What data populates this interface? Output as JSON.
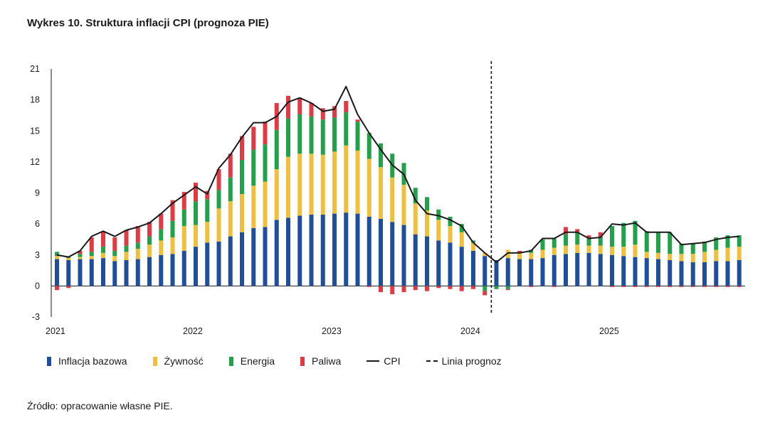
{
  "title": "Wykres 10. Struktura inflacji CPI (prognoza PIE)",
  "source": "Źródło: opracowanie własne PIE.",
  "colors": {
    "core": "#1f4e9c",
    "food": "#f0bf3c",
    "energy": "#23a04a",
    "fuel": "#e03a45",
    "cpi": "#1a1a1a",
    "forecast": "#1a1a1a"
  },
  "legend": {
    "core": "Inflacja bazowa",
    "food": "Żywność",
    "energy": "Energia",
    "fuel": "Paliwa",
    "cpi": "CPI",
    "forecast": "Linia prognoz"
  },
  "chart_data": {
    "type": "bar",
    "stacked": true,
    "title": "Wykres 10. Struktura inflacji CPI (prognoza PIE)",
    "xlabel": "",
    "ylabel": "",
    "ylim": [
      -3,
      21
    ],
    "yticks": [
      -3,
      0,
      3,
      6,
      9,
      12,
      15,
      18,
      21
    ],
    "year_labels": [
      "2021",
      "2022",
      "2023",
      "2024",
      "2025"
    ],
    "year_start_index": [
      0,
      12,
      24,
      36,
      48
    ],
    "forecast_start_index": 38,
    "months": [
      "2021-01",
      "2021-02",
      "2021-03",
      "2021-04",
      "2021-05",
      "2021-06",
      "2021-07",
      "2021-08",
      "2021-09",
      "2021-10",
      "2021-11",
      "2021-12",
      "2022-01",
      "2022-02",
      "2022-03",
      "2022-04",
      "2022-05",
      "2022-06",
      "2022-07",
      "2022-08",
      "2022-09",
      "2022-10",
      "2022-11",
      "2022-12",
      "2023-01",
      "2023-02",
      "2023-03",
      "2023-04",
      "2023-05",
      "2023-06",
      "2023-07",
      "2023-08",
      "2023-09",
      "2023-10",
      "2023-11",
      "2023-12",
      "2024-01",
      "2024-02",
      "2024-03",
      "2024-04",
      "2024-05",
      "2024-06",
      "2024-07",
      "2024-08",
      "2024-09",
      "2024-10",
      "2024-11",
      "2024-12",
      "2025-01",
      "2025-02",
      "2025-03",
      "2025-04",
      "2025-05",
      "2025-06",
      "2025-07",
      "2025-08",
      "2025-09",
      "2025-10",
      "2025-11",
      "2025-12"
    ],
    "series": [
      {
        "name": "Inflacja bazowa",
        "key": "core",
        "values": [
          2.6,
          2.5,
          2.6,
          2.6,
          2.7,
          2.4,
          2.5,
          2.6,
          2.8,
          3.0,
          3.1,
          3.4,
          3.8,
          4.2,
          4.3,
          4.8,
          5.2,
          5.6,
          5.7,
          6.4,
          6.6,
          6.8,
          6.9,
          6.9,
          7.0,
          7.1,
          7.0,
          6.7,
          6.5,
          6.2,
          5.9,
          5.0,
          4.8,
          4.4,
          4.2,
          3.8,
          3.4,
          2.9,
          2.5,
          2.7,
          2.6,
          2.6,
          2.7,
          3.0,
          3.1,
          3.2,
          3.2,
          3.1,
          3.0,
          2.9,
          2.8,
          2.7,
          2.6,
          2.5,
          2.4,
          2.3,
          2.3,
          2.4,
          2.4,
          2.5
        ]
      },
      {
        "name": "Żywność",
        "key": "food",
        "values": [
          0.3,
          0.2,
          0.2,
          0.3,
          0.5,
          0.5,
          0.8,
          1.0,
          1.2,
          1.4,
          1.6,
          2.4,
          2.1,
          2.0,
          3.2,
          3.4,
          3.7,
          4.1,
          4.4,
          4.9,
          5.9,
          6.0,
          5.9,
          5.8,
          6.0,
          6.5,
          6.1,
          5.6,
          5.0,
          4.3,
          3.9,
          3.0,
          2.5,
          2.0,
          1.6,
          1.4,
          0.8,
          0.3,
          0.0,
          0.8,
          0.6,
          0.6,
          0.8,
          0.7,
          0.8,
          0.8,
          0.7,
          0.8,
          0.8,
          0.9,
          1.2,
          0.6,
          0.6,
          0.6,
          0.7,
          0.8,
          1.0,
          1.1,
          1.3,
          1.3
        ]
      },
      {
        "name": "Energia",
        "key": "energy",
        "values": [
          0.4,
          0.1,
          0.3,
          0.4,
          0.6,
          0.5,
          0.6,
          0.6,
          0.8,
          1.1,
          1.6,
          1.6,
          2.3,
          2.2,
          1.8,
          2.3,
          3.3,
          3.5,
          3.6,
          3.8,
          3.7,
          3.8,
          3.6,
          3.4,
          3.3,
          3.2,
          2.8,
          2.5,
          2.3,
          2.3,
          2.1,
          1.5,
          1.3,
          1.0,
          0.9,
          0.8,
          0.2,
          -0.5,
          -0.3,
          -0.3,
          0.0,
          0.3,
          1.0,
          0.9,
          1.1,
          1.2,
          0.7,
          0.8,
          2.0,
          2.3,
          2.3,
          2.0,
          2.0,
          2.1,
          1.0,
          1.0,
          1.0,
          1.2,
          1.2,
          1.1
        ]
      },
      {
        "name": "Paliwa",
        "key": "fuel",
        "values": [
          -0.4,
          -0.2,
          0.3,
          1.4,
          1.5,
          1.3,
          1.5,
          1.6,
          1.4,
          1.5,
          2.0,
          1.7,
          1.8,
          0.8,
          2.0,
          2.3,
          2.3,
          2.2,
          2.2,
          2.6,
          2.2,
          1.6,
          1.3,
          1.1,
          1.1,
          1.1,
          0.2,
          -0.1,
          -0.6,
          -0.8,
          -0.6,
          -0.4,
          -0.5,
          -0.2,
          -0.3,
          -0.5,
          -0.3,
          -0.4,
          0.0,
          -0.1,
          0.2,
          -0.1,
          0.0,
          -0.1,
          0.7,
          0.3,
          0.3,
          0.5,
          -0.1,
          -0.1,
          -0.1,
          -0.1,
          -0.1,
          -0.1,
          -0.1,
          -0.1,
          -0.1,
          -0.1,
          -0.1,
          -0.1
        ]
      }
    ],
    "cpi": {
      "name": "CPI",
      "values": [
        3.0,
        2.8,
        3.4,
        4.8,
        5.3,
        4.8,
        5.4,
        5.7,
        6.1,
        7.0,
        8.0,
        8.8,
        9.6,
        8.9,
        11.4,
        12.7,
        14.4,
        15.8,
        15.8,
        16.4,
        17.8,
        18.2,
        17.7,
        16.9,
        17.1,
        19.3,
        16.6,
        14.8,
        13.2,
        11.7,
        10.8,
        8.3,
        7.0,
        6.8,
        6.4,
        5.8,
        4.2,
        3.2,
        2.3,
        3.2,
        3.2,
        3.4,
        4.6,
        4.6,
        5.2,
        5.2,
        4.6,
        4.7,
        6.0,
        5.9,
        6.1,
        5.2,
        5.2,
        5.2,
        4.0,
        4.1,
        4.2,
        4.5,
        4.7,
        4.8
      ]
    }
  }
}
